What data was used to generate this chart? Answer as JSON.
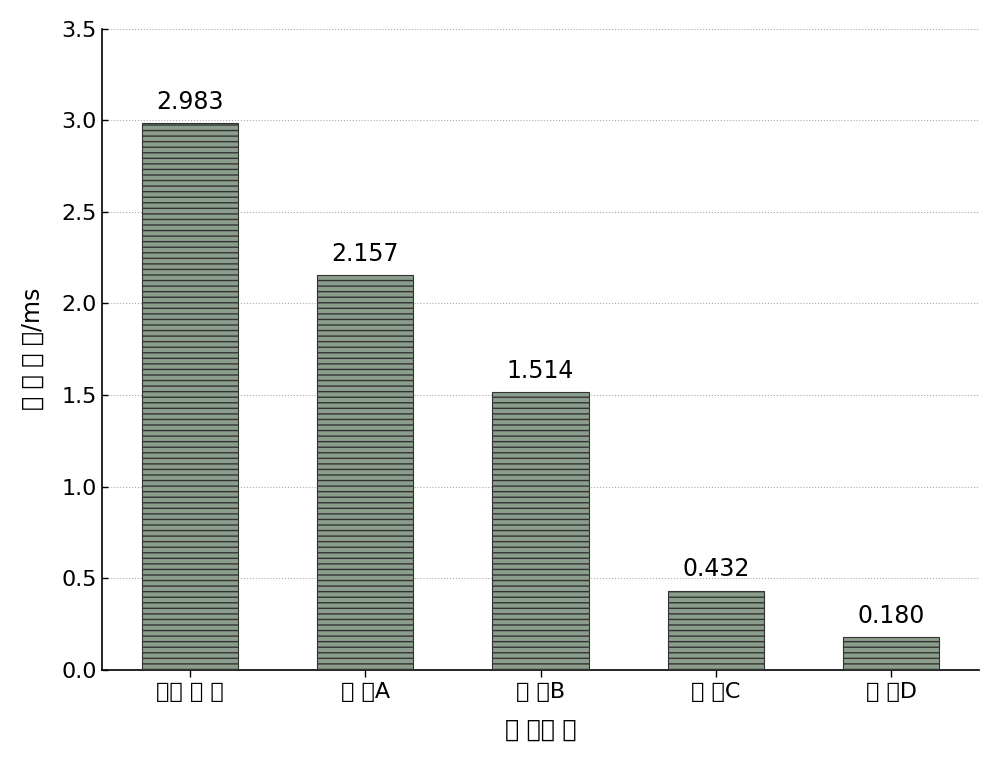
{
  "categories": [
    "原始 版 本",
    "优 化A",
    "优 化B",
    "优 化C",
    "优 化D"
  ],
  "values": [
    2.983,
    2.157,
    1.514,
    0.432,
    0.18
  ],
  "bar_face_color": "#8B9E8B",
  "bar_hatch": "---",
  "bar_edge_color": "#333333",
  "xlabel": "优 化版 本",
  "ylabel": "运 行 时 间/ms",
  "ylim": [
    0,
    3.5
  ],
  "yticks": [
    0.0,
    0.5,
    1.0,
    1.5,
    2.0,
    2.5,
    3.0,
    3.5
  ],
  "grid_color": "#AAAAAA",
  "grid_style": ":",
  "bg_color": "#FFFFFF",
  "label_fontsize": 17,
  "tick_fontsize": 16,
  "annotation_fontsize": 17,
  "bar_width": 0.55,
  "value_labels": [
    "2.983",
    "2.157",
    "1.514",
    "0.432",
    "0.180"
  ]
}
